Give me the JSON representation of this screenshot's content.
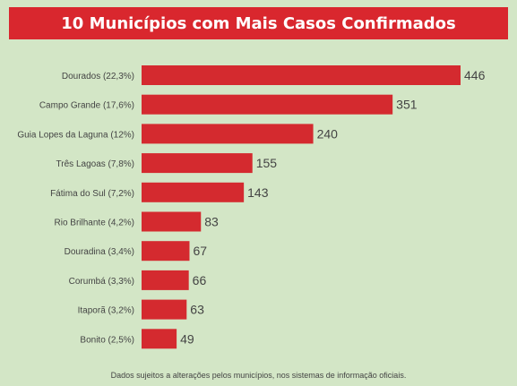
{
  "chart_data": {
    "type": "bar",
    "orientation": "horizontal",
    "title": "10 Municípios com Mais Casos Confirmados",
    "categories": [
      "Dourados (22,3%)",
      "Campo Grande (17,6%)",
      "Guia Lopes da Laguna (12%)",
      "Três Lagoas (7,8%)",
      "Fátima do Sul (7,2%)",
      "Rio Brilhante (4,2%)",
      "Douradina (3,4%)",
      "Corumbá (3,3%)",
      "Itaporã (3,2%)",
      "Bonito (2,5%)"
    ],
    "values": [
      446,
      351,
      240,
      155,
      143,
      83,
      67,
      66,
      63,
      49
    ],
    "value_labels": [
      "446",
      "351",
      "240",
      "155",
      "143",
      "83",
      "67",
      "66",
      "63",
      "49"
    ],
    "grid": false,
    "legend": "none"
  },
  "footnote": "Dados sujeitos a alterações pelos municípios, nos sistemas de informação oficiais.",
  "colors": {
    "background": "#d3e6c6",
    "bar": "#d42a2f",
    "title_bg": "#d9272e",
    "title_text": "#ffffff",
    "label_text": "#444444"
  }
}
